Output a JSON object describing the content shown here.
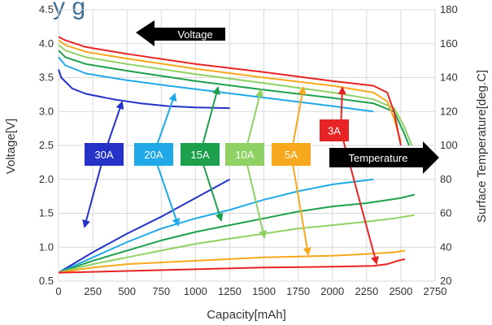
{
  "chart_data": {
    "type": "line",
    "title_fragment": "y    g",
    "xlabel": "Capacity[mAh]",
    "ylabel": "Voltage[V]",
    "y2label": "Surface Temperature[deg.C]",
    "xlim": [
      0,
      2750
    ],
    "ylim": [
      0.5,
      4.5
    ],
    "y2lim": [
      20,
      180
    ],
    "xticks": [
      "0",
      "250",
      "500",
      "750",
      "1000",
      "1250",
      "1500",
      "1750",
      "2000",
      "2250",
      "2500",
      "2750"
    ],
    "yticks": [
      "0.5",
      "1.0",
      "1.5",
      "2.0",
      "2.5",
      "3.0",
      "3.5",
      "4.0",
      "4.5"
    ],
    "y2ticks": [
      "20",
      "40",
      "60",
      "80",
      "100",
      "120",
      "140",
      "160",
      "180"
    ],
    "grid": true,
    "arrow_labels": {
      "voltage": "Voltage",
      "temperature": "Temperature"
    },
    "series": [
      {
        "name": "30A",
        "color": "#2432c8",
        "voltage": [
          [
            0,
            3.62
          ],
          [
            20,
            3.5
          ],
          [
            100,
            3.34
          ],
          [
            200,
            3.26
          ],
          [
            400,
            3.18
          ],
          [
            600,
            3.12
          ],
          [
            800,
            3.08
          ],
          [
            1000,
            3.06
          ],
          [
            1250,
            3.05
          ]
        ],
        "temperature": [
          [
            0,
            25
          ],
          [
            250,
            37
          ],
          [
            500,
            48
          ],
          [
            750,
            58
          ],
          [
            1000,
            69
          ],
          [
            1250,
            80
          ]
        ]
      },
      {
        "name": "20A",
        "color": "#1fa9e8",
        "voltage": [
          [
            0,
            3.8
          ],
          [
            50,
            3.68
          ],
          [
            200,
            3.56
          ],
          [
            500,
            3.46
          ],
          [
            800,
            3.38
          ],
          [
            1200,
            3.28
          ],
          [
            1600,
            3.18
          ],
          [
            2000,
            3.08
          ],
          [
            2300,
            3.0
          ]
        ],
        "temperature": [
          [
            0,
            25
          ],
          [
            250,
            34
          ],
          [
            500,
            43
          ],
          [
            750,
            51
          ],
          [
            1000,
            57
          ],
          [
            1250,
            62
          ],
          [
            1500,
            68
          ],
          [
            1750,
            73
          ],
          [
            2000,
            77
          ],
          [
            2300,
            80
          ]
        ]
      },
      {
        "name": "15A",
        "color": "#1ca04c",
        "voltage": [
          [
            0,
            3.9
          ],
          [
            50,
            3.8
          ],
          [
            200,
            3.7
          ],
          [
            500,
            3.6
          ],
          [
            1000,
            3.45
          ],
          [
            1500,
            3.32
          ],
          [
            2000,
            3.2
          ],
          [
            2300,
            3.12
          ],
          [
            2450,
            3.0
          ],
          [
            2520,
            2.7
          ],
          [
            2560,
            2.5
          ]
        ],
        "temperature": [
          [
            0,
            25
          ],
          [
            250,
            32
          ],
          [
            500,
            38
          ],
          [
            750,
            44
          ],
          [
            1000,
            49
          ],
          [
            1250,
            53
          ],
          [
            1500,
            57
          ],
          [
            1750,
            61
          ],
          [
            2000,
            64
          ],
          [
            2250,
            66
          ],
          [
            2500,
            69
          ],
          [
            2600,
            71
          ]
        ]
      },
      {
        "name": "10A",
        "color": "#8fd163",
        "voltage": [
          [
            0,
            3.98
          ],
          [
            50,
            3.9
          ],
          [
            200,
            3.8
          ],
          [
            500,
            3.7
          ],
          [
            1000,
            3.55
          ],
          [
            1500,
            3.42
          ],
          [
            2000,
            3.28
          ],
          [
            2300,
            3.18
          ],
          [
            2450,
            3.05
          ],
          [
            2520,
            2.8
          ],
          [
            2580,
            2.5
          ]
        ],
        "temperature": [
          [
            0,
            25
          ],
          [
            250,
            30
          ],
          [
            500,
            34
          ],
          [
            750,
            38
          ],
          [
            1000,
            42
          ],
          [
            1250,
            45
          ],
          [
            1500,
            48
          ],
          [
            1750,
            51
          ],
          [
            2000,
            53
          ],
          [
            2250,
            55
          ],
          [
            2450,
            57
          ],
          [
            2600,
            59
          ]
        ]
      },
      {
        "name": "5A",
        "color": "#f7a81c",
        "voltage": [
          [
            0,
            4.05
          ],
          [
            50,
            3.98
          ],
          [
            200,
            3.88
          ],
          [
            500,
            3.78
          ],
          [
            1000,
            3.63
          ],
          [
            1500,
            3.5
          ],
          [
            2000,
            3.38
          ],
          [
            2300,
            3.28
          ],
          [
            2400,
            3.15
          ],
          [
            2450,
            2.9
          ],
          [
            2500,
            2.55
          ]
        ],
        "temperature": [
          [
            0,
            25
          ],
          [
            250,
            28
          ],
          [
            500,
            30
          ],
          [
            750,
            31
          ],
          [
            1000,
            32
          ],
          [
            1250,
            33
          ],
          [
            1500,
            34
          ],
          [
            1750,
            34.5
          ],
          [
            2000,
            35
          ],
          [
            2250,
            36
          ],
          [
            2450,
            37
          ],
          [
            2530,
            38
          ]
        ]
      },
      {
        "name": "3A",
        "color": "#e82323",
        "voltage": [
          [
            0,
            4.1
          ],
          [
            50,
            4.05
          ],
          [
            200,
            3.95
          ],
          [
            500,
            3.85
          ],
          [
            1000,
            3.7
          ],
          [
            1500,
            3.58
          ],
          [
            2000,
            3.45
          ],
          [
            2300,
            3.38
          ],
          [
            2400,
            3.28
          ],
          [
            2450,
            3.0
          ],
          [
            2480,
            2.7
          ],
          [
            2500,
            2.5
          ]
        ],
        "temperature": [
          [
            0,
            25
          ],
          [
            500,
            26
          ],
          [
            1000,
            27
          ],
          [
            1500,
            28
          ],
          [
            2000,
            28.5
          ],
          [
            2300,
            29
          ],
          [
            2400,
            30
          ],
          [
            2480,
            32
          ],
          [
            2530,
            33
          ]
        ]
      }
    ]
  },
  "colors": {
    "title": "#3e6f93",
    "grid": "#d9d9d9",
    "axis_text": "#333333",
    "arrow_box": "#000000"
  }
}
